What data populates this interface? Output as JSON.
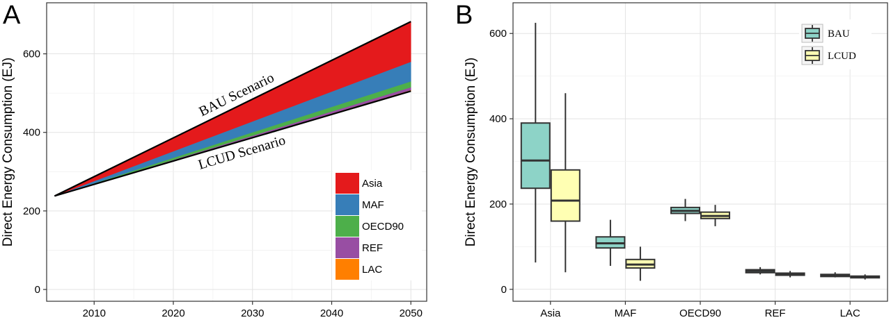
{
  "chart_data": [
    {
      "panel": "A",
      "type": "area",
      "ylabel": "Direct Energy Consumption (EJ)",
      "x_ticks": [
        2010,
        2020,
        2030,
        2040,
        2050
      ],
      "y_ticks": [
        0,
        200,
        400,
        600
      ],
      "xlim": [
        2004,
        2052
      ],
      "ylim": [
        -30,
        730
      ],
      "x": [
        2005,
        2050
      ],
      "lcud_total": [
        238,
        505
      ],
      "bau_total": [
        238,
        682
      ],
      "series": [
        {
          "name": "LAC",
          "values": [
            0,
            3
          ],
          "color": "#ff7f00"
        },
        {
          "name": "REF",
          "values": [
            0,
            7
          ],
          "color": "#984ea3"
        },
        {
          "name": "OECD90",
          "values": [
            0,
            15
          ],
          "color": "#4daf4a"
        },
        {
          "name": "MAF",
          "values": [
            0,
            50
          ],
          "color": "#377eb8"
        },
        {
          "name": "Asia",
          "values": [
            0,
            102
          ],
          "color": "#e41a1c"
        }
      ],
      "legend": [
        "Asia",
        "MAF",
        "OECD90",
        "REF",
        "LAC"
      ],
      "legend_position": "bottom-right",
      "annotations": [
        "BAU Scenario",
        "LCUD Scenario"
      ],
      "grid": true
    },
    {
      "panel": "B",
      "type": "box",
      "ylabel": "Direct Energy Consumption (EJ)",
      "categories": [
        "Asia",
        "MAF",
        "OECD90",
        "REF",
        "LAC"
      ],
      "y_ticks": [
        0,
        200,
        400,
        600
      ],
      "ylim": [
        -28,
        672
      ],
      "legend_position": "top-right",
      "grid": true,
      "series": [
        {
          "name": "BAU",
          "color": "#8dd3c7",
          "boxes": [
            {
              "min": 63,
              "q1": 237,
              "median": 302,
              "q3": 390,
              "max": 625
            },
            {
              "min": 55,
              "q1": 97,
              "median": 108,
              "q3": 123,
              "max": 163
            },
            {
              "min": 160,
              "q1": 178,
              "median": 184,
              "q3": 192,
              "max": 212
            },
            {
              "min": 35,
              "q1": 39,
              "median": 43,
              "q3": 46,
              "max": 52
            },
            {
              "min": 28,
              "q1": 30,
              "median": 33,
              "q3": 35,
              "max": 40
            }
          ]
        },
        {
          "name": "LCUD",
          "color": "#ffffb3",
          "boxes": [
            {
              "min": 40,
              "q1": 160,
              "median": 208,
              "q3": 280,
              "max": 460
            },
            {
              "min": 20,
              "q1": 50,
              "median": 58,
              "q3": 70,
              "max": 100
            },
            {
              "min": 148,
              "q1": 166,
              "median": 172,
              "q3": 181,
              "max": 198
            },
            {
              "min": 28,
              "q1": 33,
              "median": 36,
              "q3": 38,
              "max": 43
            },
            {
              "min": 23,
              "q1": 27,
              "median": 29,
              "q3": 31,
              "max": 35
            }
          ]
        }
      ]
    }
  ]
}
